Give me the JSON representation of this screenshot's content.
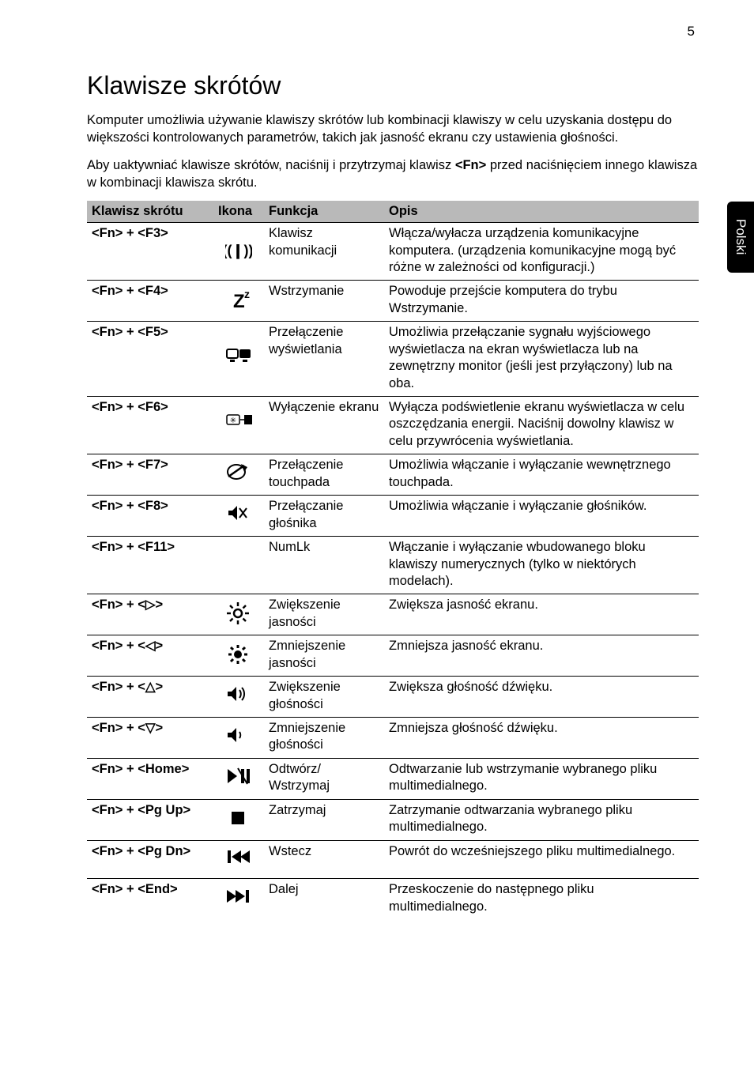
{
  "page_number": "5",
  "side_tab": "Polski",
  "heading": "Klawisze skrótów",
  "intro_p1": "Komputer umożliwia używanie klawiszy skrótów lub kombinacji klawiszy w celu uzyskania dostępu do większości kontrolowanych parametrów, takich jak jasność ekranu czy ustawienia głośności.",
  "intro_p2_a": "Aby uaktywniać klawisze skrótów, naciśnij i przytrzymaj klawisz ",
  "intro_p2_key": "<Fn>",
  "intro_p2_b": " przed naciśnięciem innego klawisza w kombinacji klawisza skrótu.",
  "headers": {
    "c1": "Klawisz skrótu",
    "c2": "Ikona",
    "c3": "Funkcja",
    "c4": "Opis"
  },
  "rows": [
    {
      "key": "<Fn> + <F3>",
      "icon": "wifi",
      "func": "Klawisz komunikacji",
      "desc": "Włącza/wyłacza urządzenia komunikacyjne komputera. (urządzenia komunikacyjne mogą być różne w zależności od konfiguracji.)"
    },
    {
      "key": "<Fn> + <F4>",
      "icon": "sleep",
      "func": "Wstrzymanie",
      "desc": "Powoduje przejście komputera do trybu Wstrzymanie."
    },
    {
      "key": "<Fn> + <F5>",
      "icon": "display",
      "func": "Przełączenie wyświetlania",
      "desc": "Umożliwia przełączanie sygnału wyjściowego wyświetlacza na ekran wyświetlacza lub na zewnętrzny monitor (jeśli jest przyłączony) lub na oba."
    },
    {
      "key": "<Fn> + <F6>",
      "icon": "screenoff",
      "func": "Wyłączenie ekranu",
      "desc": "Wyłącza podświetlenie ekranu wyświetlacza w celu oszczędzania energii. Naciśnij dowolny klawisz w celu przywrócenia wyświetlania."
    },
    {
      "key": "<Fn> + <F7>",
      "icon": "touchpad",
      "func": "Przełączenie touchpada",
      "desc": "Umożliwia włączanie i wyłączanie wewnętrznego touchpada."
    },
    {
      "key": "<Fn> + <F8>",
      "icon": "mute",
      "func": "Przełączanie głośnika",
      "desc": "Umożliwia włączanie i wyłączanie głośników."
    },
    {
      "key": "<Fn> + <F11>",
      "icon": "",
      "func": "NumLk",
      "desc": "Włączanie i wyłączanie wbudowanego bloku klawiszy numerycznych (tylko w niektórych modelach)."
    },
    {
      "key": "<Fn> + <▷>",
      "icon": "bright-up",
      "func": "Zwiększenie jasności",
      "desc": "Zwiększa jasność ekranu."
    },
    {
      "key": "<Fn> + <◁>",
      "icon": "bright-dn",
      "func": "Zmniejszenie jasności",
      "desc": "Zmniejsza jasność ekranu."
    },
    {
      "key": "<Fn> + <△>",
      "icon": "vol-up",
      "func": "Zwiększenie głośności",
      "desc": "Zwiększa głośność dźwięku."
    },
    {
      "key": "<Fn> + <▽>",
      "icon": "vol-dn",
      "func": "Zmniejszenie głośności",
      "desc": "Zmniejsza głośność dźwięku."
    },
    {
      "key": "<Fn> + <Home>",
      "icon": "playpause",
      "func": "Odtwórz/ Wstrzymaj",
      "desc": "Odtwarzanie lub wstrzymanie wybranego pliku multimedialnego."
    },
    {
      "key": "<Fn> + <Pg Up>",
      "icon": "stop",
      "func": "Zatrzymaj",
      "desc": "Zatrzymanie odtwarzania wybranego pliku multimedialnego."
    },
    {
      "key": "<Fn> + <Pg Dn>",
      "icon": "prev",
      "func": "Wstecz",
      "desc": "Powrót do wcześniejszego pliku multimedialnego."
    },
    {
      "key": "<Fn> + <End>",
      "icon": "next",
      "func": "Dalej",
      "desc": "Przeskoczenie do następnego pliku multimedialnego."
    }
  ],
  "colors": {
    "header_bg": "#b9b9b9",
    "text": "#000000",
    "page_bg": "#ffffff",
    "tab_bg": "#000000",
    "tab_text": "#ffffff"
  },
  "fonts": {
    "body_pt": 12,
    "h1_pt": 24
  }
}
